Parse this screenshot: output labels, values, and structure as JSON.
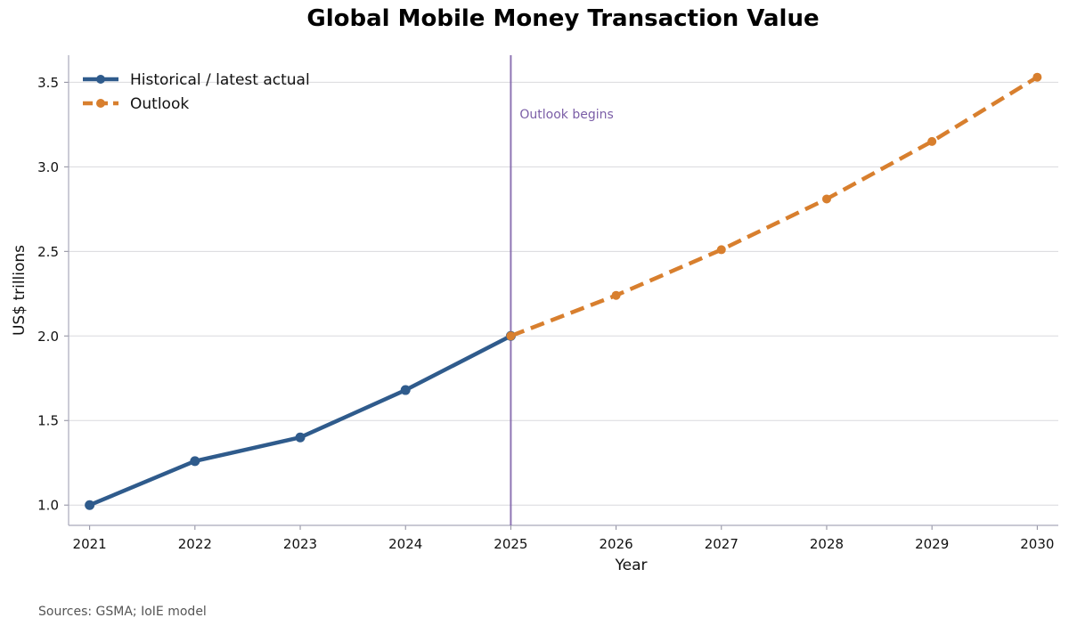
{
  "chart_data": {
    "type": "line",
    "title": "Global Mobile Money Transaction Value",
    "xlabel": "Year",
    "ylabel": "US$ trillions",
    "x": [
      2021,
      2022,
      2023,
      2024,
      2025,
      2026,
      2027,
      2028,
      2029,
      2030
    ],
    "xlim": [
      2020.8,
      2030.2
    ],
    "ylim": [
      0.88,
      3.66
    ],
    "yticks": [
      1.0,
      1.5,
      2.0,
      2.5,
      3.0,
      3.5
    ],
    "ytick_labels": [
      "1.0",
      "1.5",
      "2.0",
      "2.5",
      "3.0",
      "3.5"
    ],
    "xtick_labels": [
      "2021",
      "2022",
      "2023",
      "2024",
      "2025",
      "2026",
      "2027",
      "2028",
      "2029",
      "2030"
    ],
    "grid": "horizontal",
    "legend_position": "top-left",
    "series": [
      {
        "name": "Historical / latest actual",
        "style": "solid",
        "color": "#2f5b8c",
        "x": [
          2021,
          2022,
          2023,
          2024,
          2025
        ],
        "values": [
          1.0,
          1.26,
          1.4,
          1.68,
          2.0
        ]
      },
      {
        "name": "Outlook",
        "style": "dashed",
        "color": "#d87f2e",
        "x": [
          2025,
          2026,
          2027,
          2028,
          2029,
          2030
        ],
        "values": [
          2.0,
          2.24,
          2.51,
          2.81,
          3.15,
          3.53
        ]
      }
    ],
    "annotations": [
      {
        "text": "Outlook begins",
        "x": 2025,
        "color": "#7b5ea7"
      }
    ]
  },
  "source_note": "Sources: GSMA; IoIE model"
}
